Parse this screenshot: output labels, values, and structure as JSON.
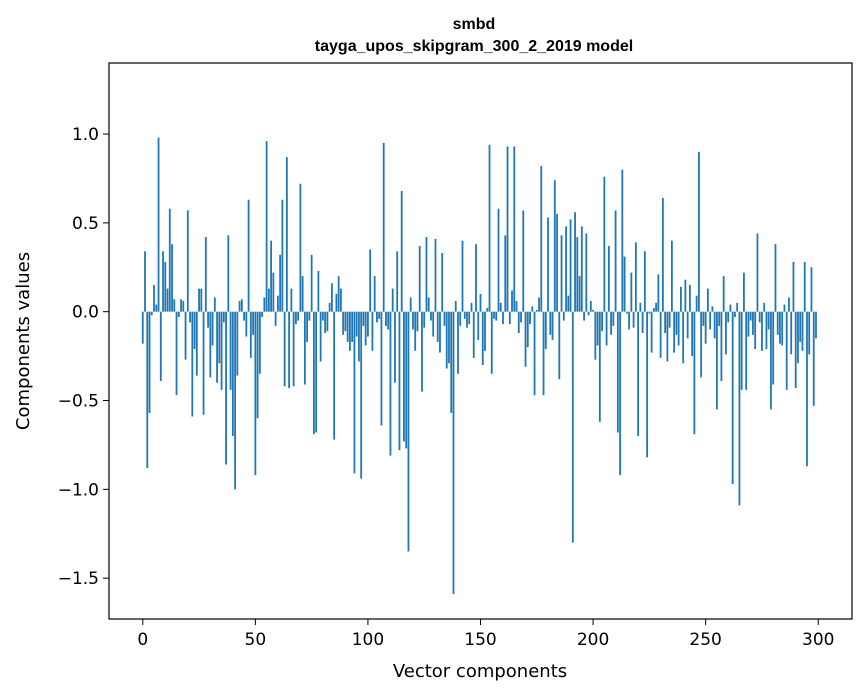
{
  "chart_data": {
    "type": "bar",
    "title": "smbd",
    "subtitle": "tayga_upos_skipgram_300_2_2019 model",
    "xlabel": "Vector components",
    "ylabel": "Components values",
    "xlim": [
      -15,
      315
    ],
    "ylim": [
      -1.73,
      1.4
    ],
    "xticks": [
      0,
      50,
      100,
      150,
      200,
      250,
      300
    ],
    "xtick_labels": [
      "0",
      "50",
      "100",
      "150",
      "200",
      "250",
      "300"
    ],
    "yticks": [
      -1.5,
      -1.0,
      -0.5,
      0.0,
      0.5,
      1.0
    ],
    "ytick_labels": [
      "−1.5",
      "−1.0",
      "−0.5",
      "0.0",
      "0.5",
      "1.0"
    ],
    "bar_color": "#1f77b4",
    "grid": false,
    "values": [
      -0.18,
      0.34,
      -0.88,
      -0.57,
      -0.02,
      0.15,
      0.04,
      0.98,
      -0.39,
      0.34,
      0.28,
      0.13,
      0.58,
      0.38,
      0.07,
      -0.47,
      -0.03,
      0.07,
      0.06,
      -0.27,
      0.57,
      -0.06,
      -0.59,
      -0.21,
      -0.36,
      0.13,
      0.13,
      -0.58,
      0.42,
      -0.09,
      -0.37,
      -0.19,
      0.08,
      -0.4,
      -0.29,
      -0.44,
      -0.06,
      -0.86,
      0.43,
      -0.44,
      -0.7,
      -1.0,
      -0.36,
      0.06,
      0.07,
      -0.05,
      -0.14,
      0.63,
      -0.26,
      -0.13,
      -0.92,
      -0.6,
      -0.35,
      -0.03,
      0.08,
      0.96,
      0.13,
      0.4,
      0.22,
      -0.08,
      0.09,
      0.32,
      0.63,
      -0.42,
      0.87,
      -0.43,
      0.13,
      -0.42,
      -0.07,
      -0.05,
      0.72,
      0.2,
      -0.41,
      -0.17,
      -0.05,
      0.32,
      -0.69,
      -0.68,
      0.23,
      -0.28,
      -0.05,
      -0.12,
      -0.11,
      0.05,
      0.16,
      -0.72,
      0.1,
      0.2,
      0.13,
      -0.13,
      -0.11,
      -0.17,
      -0.22,
      -0.17,
      -0.91,
      -0.14,
      -0.28,
      -0.94,
      -0.08,
      -0.19,
      -0.14,
      0.35,
      -0.22,
      0.2,
      -0.06,
      -0.04,
      -0.64,
      0.95,
      -0.08,
      -0.1,
      -0.81,
      0.13,
      -0.4,
      0.34,
      -0.78,
      0.68,
      -0.73,
      -0.77,
      -1.35,
      0.08,
      -0.1,
      -0.22,
      -0.11,
      0.37,
      -0.45,
      -0.09,
      0.42,
      0.08,
      -0.05,
      -0.14,
      0.41,
      -0.17,
      -0.23,
      0.33,
      -0.08,
      -0.32,
      -0.29,
      -0.57,
      -1.59,
      0.06,
      -0.35,
      -0.08,
      0.4,
      -0.04,
      -0.09,
      -0.07,
      0.05,
      -0.26,
      0.38,
      -0.16,
      0.1,
      -0.3,
      -0.22,
      0.02,
      0.94,
      -0.35,
      -0.04,
      -0.05,
      0.58,
      0.05,
      -0.07,
      0.43,
      0.93,
      -0.07,
      0.12,
      0.93,
      0.06,
      -0.12,
      -0.06,
      0.57,
      -0.31,
      -0.2,
      -0.07,
      0.03,
      -0.47,
      0.01,
      0.08,
      0.82,
      -0.47,
      -0.21,
      0.53,
      -0.13,
      -0.16,
      0.74,
      0.55,
      -0.38,
      0.43,
      -0.05,
      0.48,
      0.09,
      0.52,
      -1.3,
      0.56,
      0.42,
      0.2,
      0.48,
      -0.05,
      0.44,
      -0.02,
      0.06,
      0.01,
      -0.27,
      -0.19,
      -0.62,
      -0.11,
      0.76,
      -0.19,
      0.37,
      -0.13,
      -0.08,
      0.57,
      -0.68,
      -0.92,
      0.8,
      0.31,
      -0.01,
      -0.1,
      0.22,
      -0.09,
      0.39,
      -0.7,
      0.05,
      -0.12,
      0.34,
      -0.82,
      -0.01,
      -0.23,
      0.02,
      0.05,
      0.21,
      -0.26,
      0.64,
      -0.12,
      -0.28,
      -0.09,
      0.4,
      -0.23,
      -0.13,
      -0.19,
      0.14,
      -0.29,
      0.18,
      -0.15,
      0.15,
      -0.25,
      -0.69,
      0.09,
      0.9,
      -0.37,
      -0.08,
      -0.18,
      0.13,
      -0.1,
      0.03,
      -0.15,
      -0.55,
      -0.08,
      -0.39,
      0.2,
      -0.24,
      -0.06,
      0.04,
      -0.97,
      -0.03,
      0.05,
      -1.09,
      -0.44,
      0.22,
      -0.44,
      -0.14,
      -0.05,
      -0.13,
      -0.21,
      0.44,
      -0.06,
      -0.22,
      0.05,
      -0.21,
      -0.1,
      -0.55,
      -0.41,
      0.38,
      -0.13,
      -0.18,
      -0.19,
      0.04,
      -0.44,
      0.08,
      -0.24,
      0.28,
      -0.43,
      -0.29,
      -0.17,
      -0.22,
      0.28,
      -0.87,
      -0.24,
      0.25,
      -0.53,
      -0.15
    ]
  }
}
